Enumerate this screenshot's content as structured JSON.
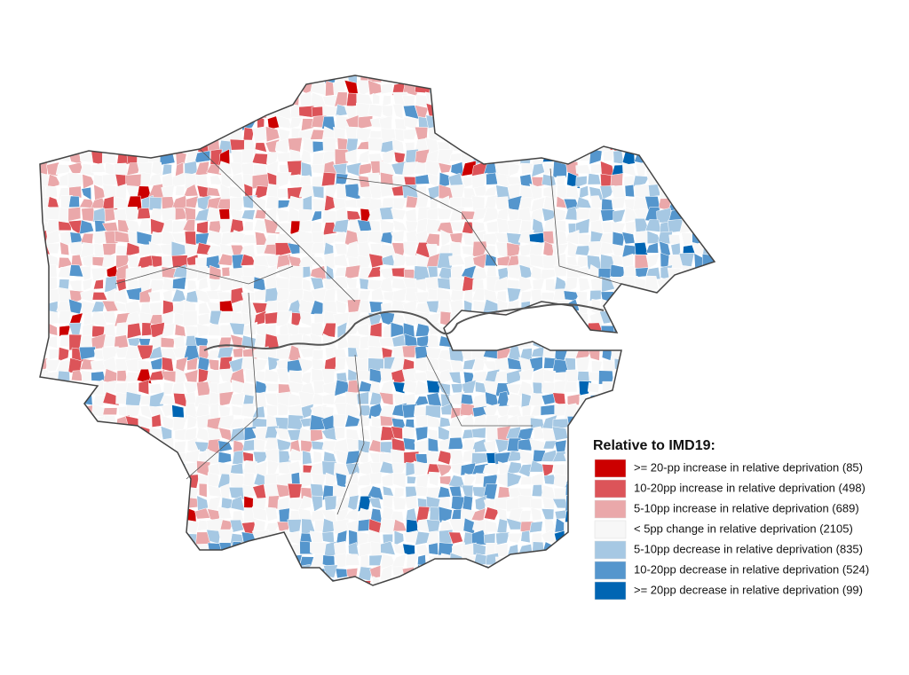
{
  "legend": {
    "title": "Relative to IMD19:",
    "items": [
      {
        "label": ">= 20-pp increase in relative deprivation (85)",
        "color": "#cc0000"
      },
      {
        "label": "10-20pp increase in relative deprivation (498)",
        "color": "#dc5459"
      },
      {
        "label": "5-10pp increase in relative deprivation (689)",
        "color": "#eaa8aa"
      },
      {
        "label": "< 5pp change in relative deprivation (2105)",
        "color": "#f7f7f7"
      },
      {
        "label": "5-10pp decrease in relative deprivation (835)",
        "color": "#a6c8e3"
      },
      {
        "label": "10-20pp decrease in relative deprivation (524)",
        "color": "#5596cd"
      },
      {
        "label": ">= 20pp decrease in relative deprivation (99)",
        "color": "#0065b3"
      }
    ]
  }
}
